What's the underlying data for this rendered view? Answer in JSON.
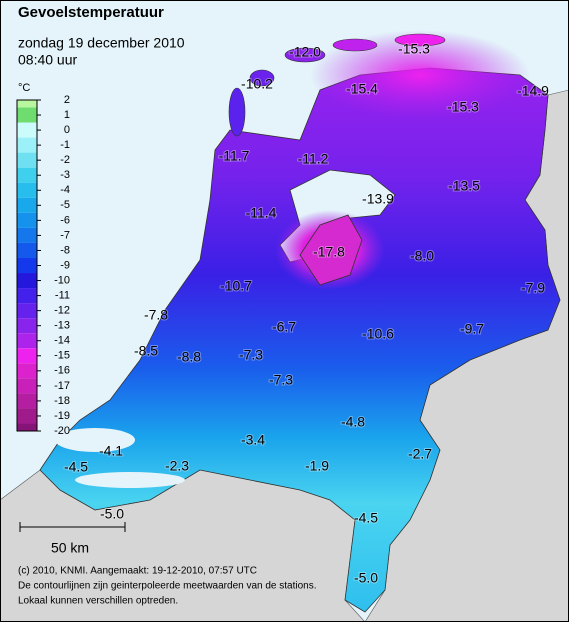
{
  "header": {
    "title": "Gevoelstemperatuur",
    "date": "zondag 19 december 2010",
    "time": "08:40 uur"
  },
  "legend": {
    "unit": "°C",
    "steps": [
      {
        "value": 2,
        "color": "#b8f7a0"
      },
      {
        "value": 1,
        "color": "#6fdc6f"
      },
      {
        "value": 0,
        "color": "#cbfbfb"
      },
      {
        "value": -1,
        "color": "#9cf0f8"
      },
      {
        "value": -2,
        "color": "#6fe0f2"
      },
      {
        "value": -3,
        "color": "#3fd0ee"
      },
      {
        "value": -4,
        "color": "#27bdec"
      },
      {
        "value": -5,
        "color": "#1aa8ec"
      },
      {
        "value": -6,
        "color": "#1593ec"
      },
      {
        "value": -7,
        "color": "#1478ec"
      },
      {
        "value": -8,
        "color": "#1458ec"
      },
      {
        "value": -9,
        "color": "#1438ec"
      },
      {
        "value": -10,
        "color": "#2418dc"
      },
      {
        "value": -11,
        "color": "#4420ec"
      },
      {
        "value": -12,
        "color": "#6422ec"
      },
      {
        "value": -13,
        "color": "#8824ec"
      },
      {
        "value": -14,
        "color": "#ac24ec"
      },
      {
        "value": -15,
        "color": "#ee22ee"
      },
      {
        "value": -16,
        "color": "#dc22cc"
      },
      {
        "value": -17,
        "color": "#c820b8"
      },
      {
        "value": -18,
        "color": "#b41ea0"
      },
      {
        "value": -19,
        "color": "#a01a8c"
      },
      {
        "value": -20,
        "color": "#861478"
      }
    ]
  },
  "stations": [
    "-12.0",
    "-15.3",
    "-10.2",
    "-15.4",
    "-15.3",
    "-14.9",
    "-11.7",
    "-11.2",
    "-13.9",
    "-13.5",
    "-11.4",
    "-17.8",
    "-8.0",
    "-10.7",
    "-7.9",
    "-7.8",
    "-6.7",
    "-10.6",
    "-9.7",
    "-8.5",
    "-8.8",
    "-7.3",
    "-7.3",
    "-4.8",
    "-3.4",
    "-4.1",
    "-2.7",
    "-4.5",
    "-2.3",
    "-1.9",
    "-5.0",
    "-4.5",
    "-5.0"
  ],
  "scale": {
    "label": "50 km"
  },
  "footer": {
    "lines": [
      "(c) 2010, KNMI. Aangemaakt: 19-12-2010, 07:57 UTC",
      "De contourlijnen zijn geinterpoleerde meetwaarden van de stations.",
      "Lokaal kunnen verschillen optreden."
    ]
  }
}
